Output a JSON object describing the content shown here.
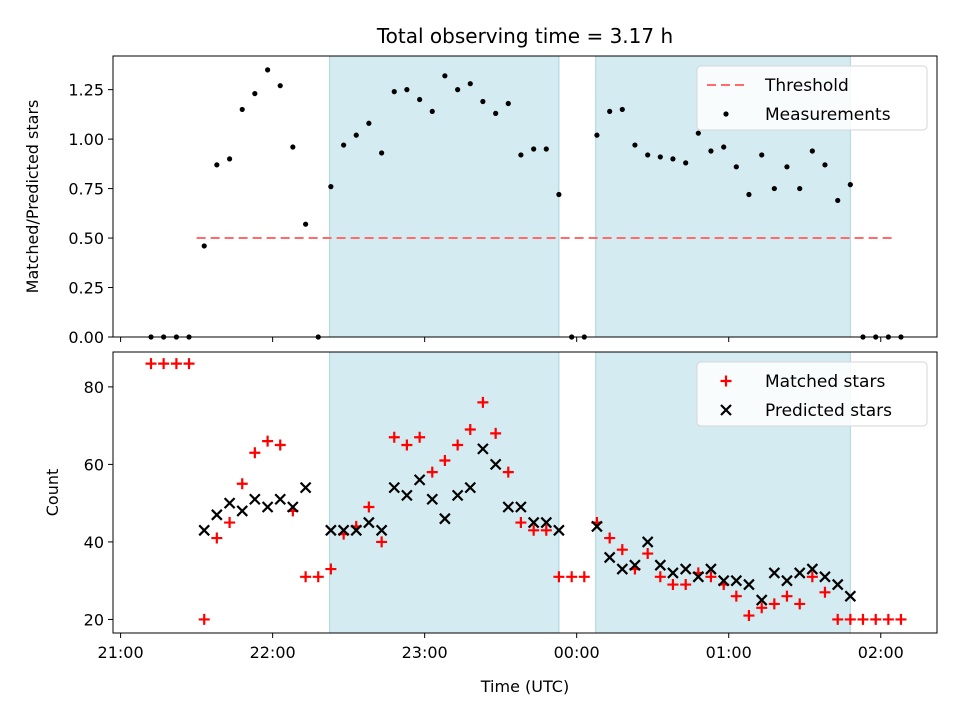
{
  "title": "Total observing time = 3.17 h",
  "colors": {
    "threshold": "#ff6b6b",
    "measurements": "#000000",
    "matched": "#ff0000",
    "predicted": "#000000",
    "span_fill": "#d4ebf1",
    "span_edge": "#a9d5e0"
  },
  "chart_data": [
    {
      "type": "scatter",
      "ylabel": "Matched/Predicted stars",
      "ylim": [
        0,
        1.42
      ],
      "yticks": [
        0.0,
        0.25,
        0.5,
        0.75,
        1.0,
        1.25
      ],
      "ytick_labels": [
        "0.00",
        "0.25",
        "0.50",
        "0.75",
        "1.00",
        "1.25"
      ],
      "grid": false,
      "legend_position": "top-right",
      "threshold": {
        "name": "Threshold",
        "value": 0.5,
        "x_range": [
          21.5,
          26.1
        ]
      },
      "series": [
        {
          "name": "Measurements",
          "marker": "dot",
          "points": [
            [
              21.2,
              0
            ],
            [
              21.283,
              0
            ],
            [
              21.367,
              0
            ],
            [
              21.45,
              0
            ],
            [
              21.55,
              0.46
            ],
            [
              21.633,
              0.87
            ],
            [
              21.717,
              0.9
            ],
            [
              21.8,
              1.15
            ],
            [
              21.883,
              1.23
            ],
            [
              21.967,
              1.35
            ],
            [
              22.05,
              1.27
            ],
            [
              22.133,
              0.96
            ],
            [
              22.217,
              0.57
            ],
            [
              22.3,
              0
            ],
            [
              22.383,
              0.76
            ],
            [
              22.467,
              0.97
            ],
            [
              22.55,
              1.02
            ],
            [
              22.633,
              1.08
            ],
            [
              22.717,
              0.93
            ],
            [
              22.8,
              1.24
            ],
            [
              22.883,
              1.25
            ],
            [
              22.967,
              1.2
            ],
            [
              23.05,
              1.14
            ],
            [
              23.133,
              1.32
            ],
            [
              23.217,
              1.25
            ],
            [
              23.3,
              1.28
            ],
            [
              23.383,
              1.19
            ],
            [
              23.467,
              1.13
            ],
            [
              23.55,
              1.18
            ],
            [
              23.633,
              0.92
            ],
            [
              23.717,
              0.95
            ],
            [
              23.8,
              0.95
            ],
            [
              23.883,
              0.72
            ],
            [
              23.967,
              0
            ],
            [
              24.05,
              0
            ],
            [
              24.133,
              1.02
            ],
            [
              24.217,
              1.14
            ],
            [
              24.3,
              1.15
            ],
            [
              24.383,
              0.97
            ],
            [
              24.467,
              0.92
            ],
            [
              24.55,
              0.91
            ],
            [
              24.633,
              0.9
            ],
            [
              24.717,
              0.88
            ],
            [
              24.8,
              1.03
            ],
            [
              24.883,
              0.94
            ],
            [
              24.967,
              0.96
            ],
            [
              25.05,
              0.86
            ],
            [
              25.133,
              0.72
            ],
            [
              25.217,
              0.92
            ],
            [
              25.3,
              0.75
            ],
            [
              25.383,
              0.86
            ],
            [
              25.467,
              0.75
            ],
            [
              25.55,
              0.94
            ],
            [
              25.633,
              0.87
            ],
            [
              25.717,
              0.69
            ],
            [
              25.8,
              0.77
            ],
            [
              25.883,
              0
            ],
            [
              25.967,
              0
            ],
            [
              26.05,
              0
            ],
            [
              26.133,
              0
            ]
          ]
        }
      ]
    },
    {
      "type": "scatter",
      "xlabel": "Time (UTC)",
      "ylabel": "Count",
      "ylim": [
        16.5,
        89
      ],
      "yticks": [
        20,
        40,
        60,
        80
      ],
      "ytick_labels": [
        "20",
        "40",
        "60",
        "80"
      ],
      "grid": false,
      "legend_position": "top-right",
      "series": [
        {
          "name": "Matched stars",
          "marker": "plus",
          "points": [
            [
              21.2,
              86
            ],
            [
              21.283,
              86
            ],
            [
              21.367,
              86
            ],
            [
              21.45,
              86
            ],
            [
              21.55,
              20
            ],
            [
              21.633,
              41
            ],
            [
              21.717,
              45
            ],
            [
              21.8,
              55
            ],
            [
              21.883,
              63
            ],
            [
              21.967,
              66
            ],
            [
              22.05,
              65
            ],
            [
              22.133,
              48
            ],
            [
              22.217,
              31
            ],
            [
              22.3,
              31
            ],
            [
              22.383,
              33
            ],
            [
              22.467,
              42
            ],
            [
              22.55,
              44
            ],
            [
              22.633,
              49
            ],
            [
              22.717,
              40
            ],
            [
              22.8,
              67
            ],
            [
              22.883,
              65
            ],
            [
              22.967,
              67
            ],
            [
              23.05,
              58
            ],
            [
              23.133,
              61
            ],
            [
              23.217,
              65
            ],
            [
              23.3,
              69
            ],
            [
              23.383,
              76
            ],
            [
              23.467,
              68
            ],
            [
              23.55,
              58
            ],
            [
              23.633,
              45
            ],
            [
              23.717,
              43
            ],
            [
              23.8,
              43
            ],
            [
              23.883,
              31
            ],
            [
              23.967,
              31
            ],
            [
              24.05,
              31
            ],
            [
              24.133,
              45
            ],
            [
              24.217,
              41
            ],
            [
              24.3,
              38
            ],
            [
              24.383,
              33
            ],
            [
              24.467,
              37
            ],
            [
              24.55,
              31
            ],
            [
              24.633,
              29
            ],
            [
              24.717,
              29
            ],
            [
              24.8,
              32
            ],
            [
              24.883,
              31
            ],
            [
              24.967,
              29
            ],
            [
              25.05,
              26
            ],
            [
              25.133,
              21
            ],
            [
              25.217,
              23
            ],
            [
              25.3,
              24
            ],
            [
              25.383,
              26
            ],
            [
              25.467,
              24
            ],
            [
              25.55,
              31
            ],
            [
              25.633,
              27
            ],
            [
              25.717,
              20
            ],
            [
              25.8,
              20
            ],
            [
              25.883,
              20
            ],
            [
              25.967,
              20
            ],
            [
              26.05,
              20
            ],
            [
              26.133,
              20
            ]
          ]
        },
        {
          "name": "Predicted stars",
          "marker": "x",
          "points": [
            [
              21.55,
              43
            ],
            [
              21.633,
              47
            ],
            [
              21.717,
              50
            ],
            [
              21.8,
              48
            ],
            [
              21.883,
              51
            ],
            [
              21.967,
              49
            ],
            [
              22.05,
              51
            ],
            [
              22.133,
              49
            ],
            [
              22.217,
              54
            ],
            [
              22.383,
              43
            ],
            [
              22.467,
              43
            ],
            [
              22.55,
              43
            ],
            [
              22.633,
              45
            ],
            [
              22.717,
              43
            ],
            [
              22.8,
              54
            ],
            [
              22.883,
              52
            ],
            [
              22.967,
              56
            ],
            [
              23.05,
              51
            ],
            [
              23.133,
              46
            ],
            [
              23.217,
              52
            ],
            [
              23.3,
              54
            ],
            [
              23.383,
              64
            ],
            [
              23.467,
              60
            ],
            [
              23.55,
              49
            ],
            [
              23.633,
              49
            ],
            [
              23.717,
              45
            ],
            [
              23.8,
              45
            ],
            [
              23.883,
              43
            ],
            [
              24.133,
              44
            ],
            [
              24.217,
              36
            ],
            [
              24.3,
              33
            ],
            [
              24.383,
              34
            ],
            [
              24.467,
              40
            ],
            [
              24.55,
              34
            ],
            [
              24.633,
              32
            ],
            [
              24.717,
              33
            ],
            [
              24.8,
              31
            ],
            [
              24.883,
              33
            ],
            [
              24.967,
              30
            ],
            [
              25.05,
              30
            ],
            [
              25.133,
              29
            ],
            [
              25.217,
              25
            ],
            [
              25.3,
              32
            ],
            [
              25.383,
              30
            ],
            [
              25.467,
              32
            ],
            [
              25.55,
              33
            ],
            [
              25.633,
              31
            ],
            [
              25.717,
              29
            ],
            [
              25.8,
              26
            ]
          ]
        }
      ]
    }
  ],
  "shared_x": {
    "xlim": [
      20.95,
      26.37
    ],
    "xticks": [
      21,
      22,
      23,
      24,
      25,
      26
    ],
    "xtick_labels": [
      "21:00",
      "22:00",
      "23:00",
      "00:00",
      "01:00",
      "02:00"
    ]
  },
  "spans": [
    [
      22.375,
      23.883
    ],
    [
      24.125,
      25.8
    ]
  ]
}
